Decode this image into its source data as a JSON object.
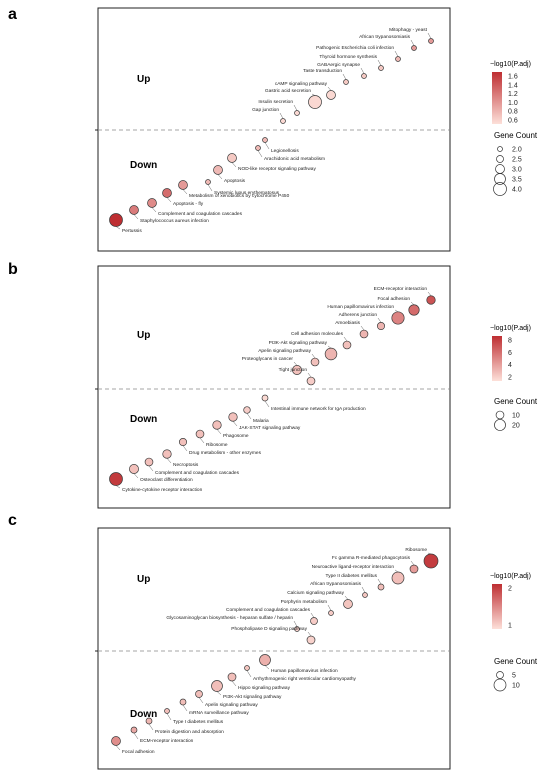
{
  "chart_data": [
    {
      "type": "scatter",
      "panel_label": "a",
      "groups": [
        {
          "label": "Up",
          "points": [
            {
              "term": "Mitophagy - yeast",
              "count": 2,
              "padj": 1.0
            },
            {
              "term": "African trypanosomiasis",
              "count": 2,
              "padj": 1.0
            },
            {
              "term": "Pathogenic Escherichia coli infection",
              "count": 2,
              "padj": 0.8
            },
            {
              "term": "Thyroid hormone synthesis",
              "count": 2,
              "padj": 0.7
            },
            {
              "term": "GABAergic synapse",
              "count": 2,
              "padj": 0.7
            },
            {
              "term": "Taste transduction",
              "count": 2,
              "padj": 0.7
            },
            {
              "term": "cAMP signaling pathway",
              "count": 3,
              "padj": 0.6
            },
            {
              "term": "Gastric acid secretion",
              "count": 4,
              "padj": 0.6
            },
            {
              "term": "Insulin secretion",
              "count": 2,
              "padj": 0.6
            },
            {
              "term": "Gap junction",
              "count": 2,
              "padj": 0.6
            }
          ]
        },
        {
          "label": "Down",
          "points": [
            {
              "term": "Legionellosis",
              "count": 2,
              "padj": 0.8
            },
            {
              "term": "Arachidonic acid metabolism",
              "count": 2,
              "padj": 0.8
            },
            {
              "term": "NOD-like receptor signaling pathway",
              "count": 3,
              "padj": 0.7
            },
            {
              "term": "Apoptosis",
              "count": 3,
              "padj": 0.8
            },
            {
              "term": "Systemic lupus erythematosus",
              "count": 2,
              "padj": 0.8
            },
            {
              "term": "Metabolism of xenobiotics by cytochrome P450",
              "count": 3,
              "padj": 1.0
            },
            {
              "term": "Apoptosis - fly",
              "count": 3,
              "padj": 1.3
            },
            {
              "term": "Complement and coagulation cascades",
              "count": 3,
              "padj": 1.1
            },
            {
              "term": "Staphylococcus aureus infection",
              "count": 3,
              "padj": 1.2
            },
            {
              "term": "Pertussis",
              "count": 4,
              "padj": 1.7
            }
          ]
        }
      ],
      "color_legend": {
        "title": "−log10(P.adj)",
        "ticks": [
          "1.6",
          "1.4",
          "1.2",
          "1.0",
          "0.8",
          "0.6"
        ],
        "min": 0.55,
        "max": 1.7
      },
      "size_legend": {
        "title": "Gene Count",
        "ticks": [
          "2.0",
          "2.5",
          "3.0",
          "3.5",
          "4.0"
        ],
        "values": [
          2.0,
          2.5,
          3.0,
          3.5,
          4.0
        ]
      }
    },
    {
      "type": "scatter",
      "panel_label": "b",
      "groups": [
        {
          "label": "Up",
          "points": [
            {
              "term": "ECM-receptor interaction",
              "count": 12,
              "padj": 7.0
            },
            {
              "term": "Focal adhesion",
              "count": 18,
              "padj": 6.0
            },
            {
              "term": "Human papillomavirus infection",
              "count": 24,
              "padj": 5.0
            },
            {
              "term": "Adherens junction",
              "count": 8,
              "padj": 3.0
            },
            {
              "term": "Amoebiasis",
              "count": 10,
              "padj": 3.0
            },
            {
              "term": "Cell adhesion molecules",
              "count": 10,
              "padj": 2.5
            },
            {
              "term": "PI3K-Akt signaling pathway",
              "count": 22,
              "padj": 3.0
            },
            {
              "term": "Apelin signaling pathway",
              "count": 10,
              "padj": 2.5
            },
            {
              "term": "Proteoglycans in cancer",
              "count": 14,
              "padj": 2.5
            },
            {
              "term": "Tight junction",
              "count": 10,
              "padj": 2.0
            }
          ]
        },
        {
          "label": "Down",
          "points": [
            {
              "term": "Intestinal immune network for IgA production",
              "count": 4,
              "padj": 1.5
            },
            {
              "term": "Malaria",
              "count": 6,
              "padj": 2.0
            },
            {
              "term": "JAK-STAT signaling pathway",
              "count": 12,
              "padj": 2.5
            },
            {
              "term": "Phagosome",
              "count": 12,
              "padj": 2.5
            },
            {
              "term": "Ribosome",
              "count": 10,
              "padj": 2.5
            },
            {
              "term": "Drug metabolism - other enzymes",
              "count": 8,
              "padj": 2.5
            },
            {
              "term": "Necroptosis",
              "count": 12,
              "padj": 2.5
            },
            {
              "term": "Complement and coagulation cascades",
              "count": 10,
              "padj": 2.5
            },
            {
              "term": "Osteoclast differentiation",
              "count": 14,
              "padj": 2.5
            },
            {
              "term": "Cytokine-cytokine receptor interaction",
              "count": 26,
              "padj": 8.0
            }
          ]
        }
      ],
      "color_legend": {
        "title": "−log10(P.adj)",
        "ticks": [
          "8",
          "6",
          "4",
          "2"
        ],
        "min": 1.2,
        "max": 8.5
      },
      "size_legend": {
        "title": "Gene Count",
        "ticks": [
          "10",
          "20"
        ],
        "values": [
          10,
          20
        ]
      }
    },
    {
      "type": "scatter",
      "panel_label": "c",
      "groups": [
        {
          "label": "Up",
          "points": [
            {
              "term": "Ribosome",
              "count": 12,
              "padj": 2.8
            },
            {
              "term": "Fc gamma R-mediated phagocytosis",
              "count": 6,
              "padj": 1.4
            },
            {
              "term": "Neuroactive ligand-receptor interaction",
              "count": 10,
              "padj": 0.9
            },
            {
              "term": "Type II diabetes mellitus",
              "count": 4,
              "padj": 0.9
            },
            {
              "term": "African trypanosomiasis",
              "count": 3,
              "padj": 0.8
            },
            {
              "term": "Calcium signaling pathway",
              "count": 7,
              "padj": 0.8
            },
            {
              "term": "Porphyrin metabolism",
              "count": 3,
              "padj": 0.7
            },
            {
              "term": "Complement and coagulation cascades",
              "count": 5,
              "padj": 0.7
            },
            {
              "term": "Glycosaminoglycan biosynthesis - heparan sulfate / heparin",
              "count": 3,
              "padj": 0.6
            },
            {
              "term": "Phospholipase D signaling pathway",
              "count": 6,
              "padj": 0.6
            }
          ]
        },
        {
          "label": "Down",
          "points": [
            {
              "term": "Human papillomavirus infection",
              "count": 9,
              "padj": 1.1
            },
            {
              "term": "Arrhythmogenic right ventricular cardiomyopathy",
              "count": 3,
              "padj": 0.8
            },
            {
              "term": "Hippo signaling pathway",
              "count": 6,
              "padj": 0.9
            },
            {
              "term": "PI3K-Akt signaling pathway",
              "count": 9,
              "padj": 0.9
            },
            {
              "term": "Apelin signaling pathway",
              "count": 5,
              "padj": 0.9
            },
            {
              "term": "mRNA surveillance pathway",
              "count": 4,
              "padj": 0.9
            },
            {
              "term": "Type I diabetes mellitus",
              "count": 3,
              "padj": 0.9
            },
            {
              "term": "Protein digestion and absorption",
              "count": 4,
              "padj": 1.0
            },
            {
              "term": "ECM-receptor interaction",
              "count": 4,
              "padj": 1.2
            },
            {
              "term": "Focal adhesion",
              "count": 7,
              "padj": 1.6
            }
          ]
        }
      ],
      "color_legend": {
        "title": "−log10(P.adj)",
        "ticks": [
          "2",
          "1"
        ],
        "min": 0.4,
        "max": 3.0
      },
      "size_legend": {
        "title": "Gene Count",
        "ticks": [
          "5",
          "10"
        ],
        "values": [
          5,
          10
        ]
      }
    }
  ]
}
